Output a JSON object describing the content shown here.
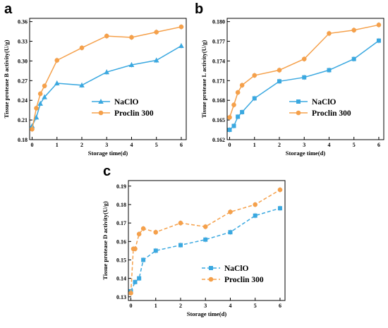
{
  "colors": {
    "NaClO": "#3aa8e0",
    "Proclin 300": "#f5a04a"
  },
  "chart_data": [
    {
      "panel": "a",
      "type": "line",
      "xlabel": "Storage time(d)",
      "ylabel": "Tissue protease B activity(U/g)",
      "xlim": [
        -0.1,
        6.2
      ],
      "ylim": [
        0.18,
        0.365
      ],
      "xticks": [
        0,
        1,
        2,
        3,
        4,
        5,
        6
      ],
      "yticks": [
        0.18,
        0.21,
        0.24,
        0.27,
        0.3,
        0.33,
        0.36
      ],
      "ytick_decimals": 2,
      "legend_position": "center-right",
      "series": [
        {
          "name": "NaClO",
          "marker": "triangle",
          "dashed": false,
          "x": [
            0,
            0.17,
            0.33,
            0.5,
            1,
            2,
            3,
            4,
            5,
            6
          ],
          "y": [
            0.201,
            0.214,
            0.235,
            0.245,
            0.266,
            0.263,
            0.283,
            0.294,
            0.301,
            0.323
          ]
        },
        {
          "name": "Proclin 300",
          "marker": "circle",
          "dashed": false,
          "x": [
            0,
            0.17,
            0.33,
            0.5,
            1,
            2,
            3,
            4,
            5,
            6
          ],
          "y": [
            0.196,
            0.228,
            0.25,
            0.262,
            0.301,
            0.32,
            0.338,
            0.336,
            0.344,
            0.352
          ]
        }
      ]
    },
    {
      "panel": "b",
      "type": "line",
      "xlabel": "Storage time(d)",
      "ylabel": "Tissue protease L activity(U/g)",
      "xlim": [
        -0.1,
        6.2
      ],
      "ylim": [
        0.162,
        0.1805
      ],
      "xticks": [
        0,
        1,
        2,
        3,
        4,
        5,
        6
      ],
      "yticks": [
        0.162,
        0.165,
        0.168,
        0.171,
        0.174,
        0.177,
        0.18
      ],
      "ytick_decimals": 3,
      "legend_position": "center-right",
      "series": [
        {
          "name": "NaClO",
          "marker": "square",
          "dashed": false,
          "x": [
            0,
            0.17,
            0.33,
            0.5,
            1,
            2,
            3,
            4,
            5,
            6
          ],
          "y": [
            0.1635,
            0.1641,
            0.1655,
            0.1662,
            0.1683,
            0.1709,
            0.1715,
            0.1726,
            0.1743,
            0.1771
          ]
        },
        {
          "name": "Proclin 300",
          "marker": "circle",
          "dashed": false,
          "x": [
            0,
            0.17,
            0.33,
            0.5,
            1,
            2,
            3,
            4,
            5,
            6
          ],
          "y": [
            0.1654,
            0.1673,
            0.1692,
            0.1703,
            0.1718,
            0.1726,
            0.1743,
            0.1782,
            0.1787,
            0.1795
          ]
        }
      ]
    },
    {
      "panel": "c",
      "type": "line",
      "xlabel": "Storage time(d)",
      "ylabel": "Tissue protease D activity(U/g)",
      "xlim": [
        -0.1,
        6.2
      ],
      "ylim": [
        0.128,
        0.193
      ],
      "xticks": [
        0,
        1,
        2,
        3,
        4,
        5,
        6
      ],
      "yticks": [
        0.13,
        0.14,
        0.15,
        0.16,
        0.17,
        0.18,
        0.19
      ],
      "ytick_decimals": 2,
      "legend_position": "lower-right",
      "series": [
        {
          "name": "NaClO",
          "marker": "square",
          "dashed": true,
          "x": [
            0,
            0.17,
            0.33,
            0.5,
            1,
            2,
            3,
            4,
            5,
            6
          ],
          "y": [
            0.133,
            0.138,
            0.14,
            0.15,
            0.155,
            0.158,
            0.161,
            0.165,
            0.174,
            0.178
          ]
        },
        {
          "name": "Proclin 300",
          "marker": "circle",
          "dashed": true,
          "x": [
            0,
            0.1,
            0.17,
            0.33,
            0.5,
            1,
            2,
            3,
            4,
            5,
            6
          ],
          "y": [
            0.132,
            0.156,
            0.156,
            0.164,
            0.167,
            0.165,
            0.17,
            0.168,
            0.176,
            0.18,
            0.188
          ]
        }
      ]
    }
  ]
}
